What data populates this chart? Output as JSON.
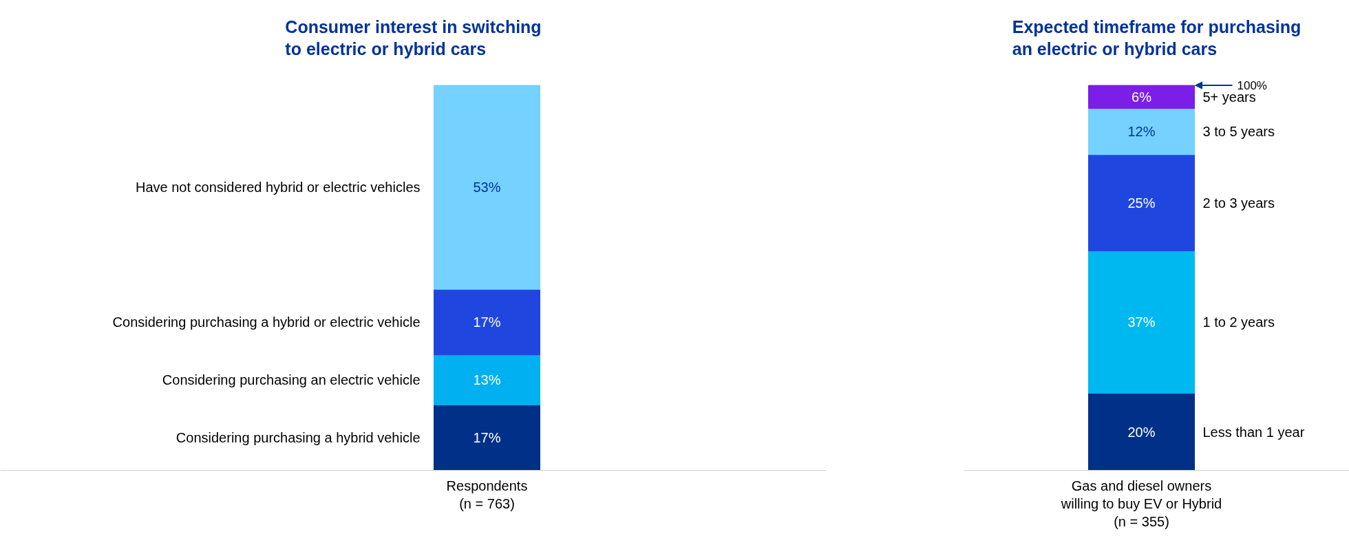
{
  "chart_data": [
    {
      "type": "bar",
      "stacked": true,
      "title": "Consumer interest in switching\nto electric or hybrid cars",
      "categories": [
        "Respondents\n(n = 763)"
      ],
      "series": [
        {
          "name": "Considering purchasing a hybrid vehicle",
          "color": "#003087",
          "values": [
            17
          ],
          "value_labels": [
            "17%"
          ]
        },
        {
          "name": "Considering purchasing an electric vehicle",
          "color": "#00b0f0",
          "values": [
            13
          ],
          "value_labels": [
            "13%"
          ]
        },
        {
          "name": "Considering purchasing a hybrid or electric vehicle",
          "color": "#1f47e0",
          "values": [
            17
          ],
          "value_labels": [
            "17%"
          ]
        },
        {
          "name": "Have not considered hybrid or electric vehicles",
          "color": "#75d1ff",
          "values": [
            53
          ],
          "value_labels": [
            "53%"
          ]
        }
      ]
    },
    {
      "type": "bar",
      "stacked": true,
      "title": "Expected timeframe for purchasing\nan electric or hybrid cars",
      "categories": [
        "Gas and diesel owners\nwilling to buy EV or Hybrid\n(n = 355)"
      ],
      "series": [
        {
          "name": "Less than 1 year",
          "color": "#003087",
          "values": [
            20
          ],
          "value_labels": [
            "20%"
          ]
        },
        {
          "name": "1 to 2 years",
          "color": "#00b8f0",
          "values": [
            37
          ],
          "value_labels": [
            "37%"
          ]
        },
        {
          "name": "2 to 3 years",
          "color": "#1f47e0",
          "values": [
            25
          ],
          "value_labels": [
            "25%"
          ]
        },
        {
          "name": "3 to 5 years",
          "color": "#75d1ff",
          "values": [
            12
          ],
          "value_labels": [
            "12%"
          ]
        },
        {
          "name": "5+ years",
          "color": "#7a1ee8",
          "values": [
            6
          ],
          "value_labels": [
            "6%"
          ]
        }
      ],
      "annotations": [
        "100%"
      ]
    }
  ]
}
